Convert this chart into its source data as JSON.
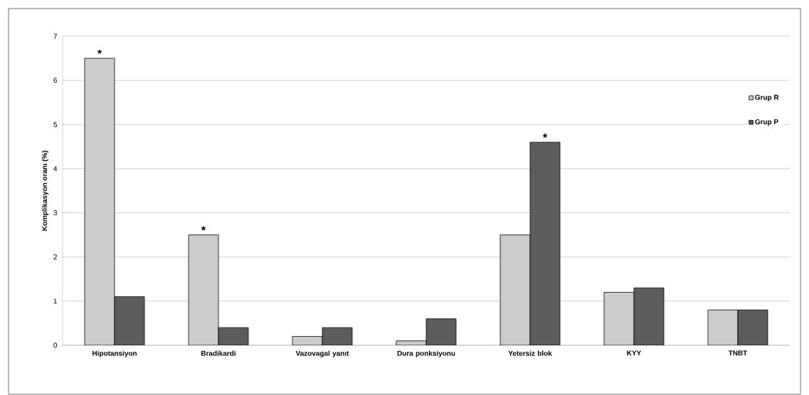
{
  "chart_data": {
    "type": "bar",
    "ylabel": "Komplikasyon oranı (%)",
    "categories": [
      "Hipotansiyon",
      "Bradikardi",
      "Vazovagal yanıt",
      "Dura ponksiyonu",
      "Yetersiz blok",
      "KYY",
      "TNBT"
    ],
    "series": [
      {
        "name": "Grup R",
        "color": "#cccccc",
        "values": [
          6.5,
          2.5,
          0.2,
          0.1,
          2.5,
          1.2,
          0.8
        ]
      },
      {
        "name": "Grup P",
        "color": "#5c5c5c",
        "values": [
          1.1,
          0.4,
          0.4,
          0.6,
          4.6,
          1.3,
          0.8
        ]
      }
    ],
    "ylim": [
      0,
      7
    ],
    "yticks": [
      0,
      1,
      2,
      3,
      4,
      5,
      6,
      7
    ],
    "grid": "y",
    "legend": "right",
    "annotations": [
      {
        "text": "*",
        "x": "Hipotansiyon",
        "y": 6.5
      },
      {
        "text": "*",
        "x": "Bradikardi",
        "y": 2.5
      },
      {
        "text": "*",
        "x": "Yetersiz blok",
        "y": 4.6
      }
    ]
  }
}
